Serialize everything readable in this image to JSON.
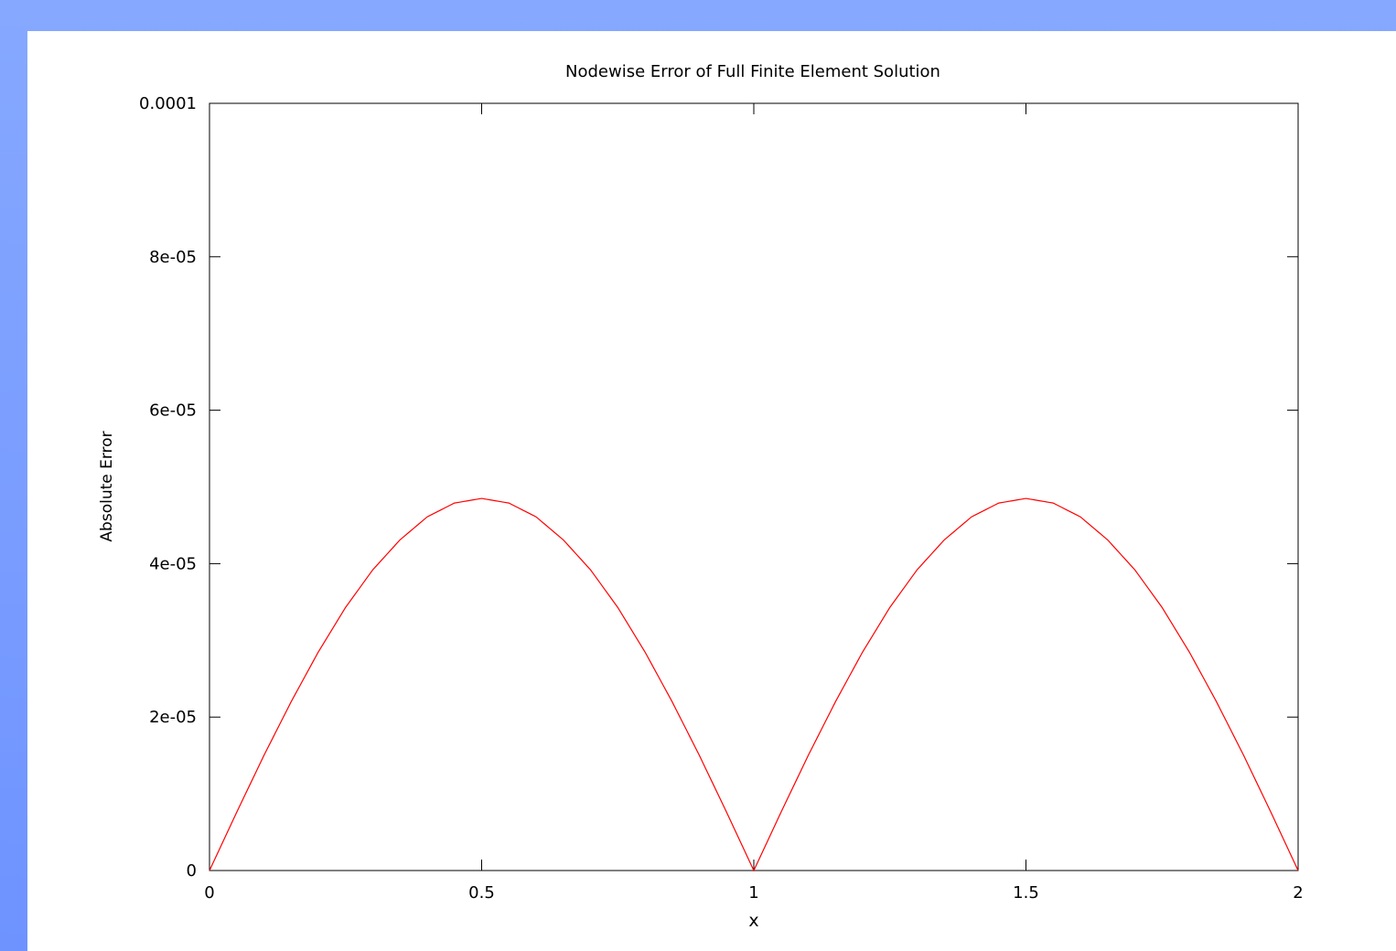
{
  "chart_data": {
    "type": "line",
    "title": "Nodewise Error of Full Finite Element Solution",
    "xlabel": "x",
    "ylabel": "Absolute Error",
    "xlim": [
      0,
      2
    ],
    "ylim": [
      0,
      0.0001
    ],
    "x_ticks": [
      {
        "value": 0,
        "label": "0"
      },
      {
        "value": 0.5,
        "label": "0.5"
      },
      {
        "value": 1,
        "label": "1"
      },
      {
        "value": 1.5,
        "label": "1.5"
      },
      {
        "value": 2,
        "label": "2"
      }
    ],
    "y_ticks": [
      {
        "value": 0,
        "label": "0"
      },
      {
        "value": 2e-05,
        "label": "2e-05"
      },
      {
        "value": 4e-05,
        "label": "4e-05"
      },
      {
        "value": 6e-05,
        "label": "6e-05"
      },
      {
        "value": 8e-05,
        "label": "8e-05"
      },
      {
        "value": 0.0001,
        "label": "0.0001"
      }
    ],
    "grid": false,
    "legend": "none",
    "series": [
      {
        "color": "#ff0000",
        "x": [
          0,
          0.05,
          0.1,
          0.15,
          0.2,
          0.25,
          0.3,
          0.35,
          0.4,
          0.45,
          0.5,
          0.55,
          0.6,
          0.65,
          0.7,
          0.75,
          0.8,
          0.85,
          0.9,
          0.95,
          1,
          1.05,
          1.1,
          1.15,
          1.2,
          1.25,
          1.3,
          1.35,
          1.4,
          1.45,
          1.5,
          1.55,
          1.6,
          1.65,
          1.7,
          1.75,
          1.8,
          1.85,
          1.9,
          1.95,
          2
        ],
        "y": [
          0,
          7.6e-06,
          1.5e-05,
          2.2e-05,
          2.85e-05,
          3.43e-05,
          3.92e-05,
          4.31e-05,
          4.61e-05,
          4.79e-05,
          4.85e-05,
          4.79e-05,
          4.61e-05,
          4.31e-05,
          3.92e-05,
          3.43e-05,
          2.85e-05,
          2.2e-05,
          1.5e-05,
          7.6e-06,
          0,
          7.6e-06,
          1.5e-05,
          2.2e-05,
          2.85e-05,
          3.43e-05,
          3.92e-05,
          4.31e-05,
          4.61e-05,
          4.79e-05,
          4.85e-05,
          4.79e-05,
          4.61e-05,
          4.31e-05,
          3.92e-05,
          3.43e-05,
          2.85e-05,
          2.2e-05,
          1.5e-05,
          7.6e-06,
          0
        ]
      }
    ]
  }
}
